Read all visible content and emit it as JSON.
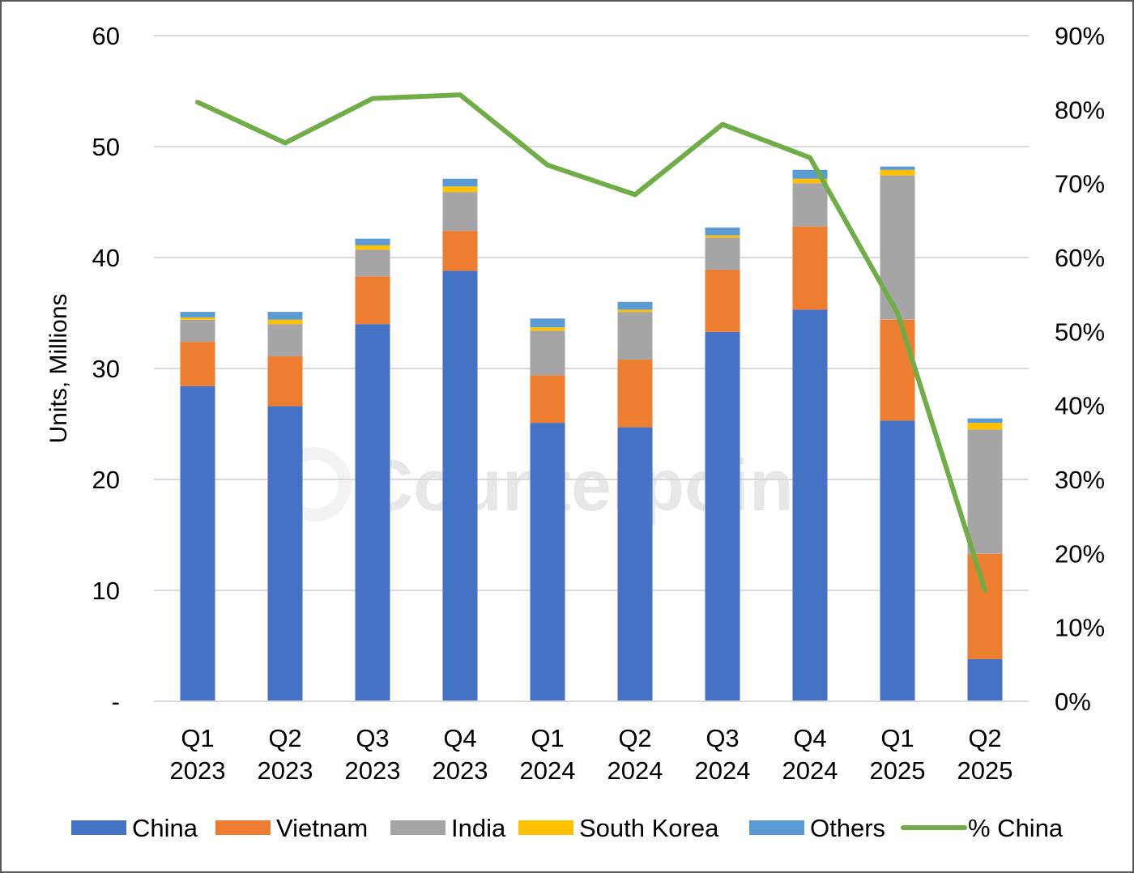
{
  "chart_data": {
    "type": "bar",
    "stacked": true,
    "categories": [
      [
        "Q1",
        "2023"
      ],
      [
        "Q2",
        "2023"
      ],
      [
        "Q3",
        "2023"
      ],
      [
        "Q4",
        "2023"
      ],
      [
        "Q1",
        "2024"
      ],
      [
        "Q2",
        "2024"
      ],
      [
        "Q3",
        "2024"
      ],
      [
        "Q4",
        "2024"
      ],
      [
        "Q1",
        "2025"
      ],
      [
        "Q2",
        "2025"
      ]
    ],
    "ylabel": "Units, Millions",
    "ylim": [
      0,
      60
    ],
    "y_ticks": [
      "-",
      "10",
      "20",
      "30",
      "40",
      "50",
      "60"
    ],
    "y2lim": [
      0,
      90
    ],
    "y2_ticks": [
      "0%",
      "10%",
      "20%",
      "30%",
      "40%",
      "50%",
      "60%",
      "70%",
      "80%",
      "90%"
    ],
    "grid": true,
    "legend_position": "bottom",
    "series": [
      {
        "name": "China",
        "color": "#4472C4",
        "values": [
          28.4,
          26.6,
          34.0,
          38.8,
          25.1,
          24.7,
          33.3,
          35.3,
          25.3,
          3.8
        ]
      },
      {
        "name": "Vietnam",
        "color": "#ED7D31",
        "values": [
          4.0,
          4.5,
          4.3,
          3.6,
          4.3,
          6.1,
          5.6,
          7.5,
          9.1,
          9.5
        ]
      },
      {
        "name": "India",
        "color": "#A5A5A5",
        "values": [
          2.0,
          2.9,
          2.4,
          3.5,
          4.0,
          4.3,
          2.9,
          3.9,
          13.0,
          11.2
        ]
      },
      {
        "name": "South Korea",
        "color": "#FFC000",
        "values": [
          0.2,
          0.4,
          0.4,
          0.5,
          0.3,
          0.2,
          0.2,
          0.4,
          0.5,
          0.6
        ]
      },
      {
        "name": "Others",
        "color": "#5B9BD5",
        "values": [
          0.5,
          0.7,
          0.6,
          0.7,
          0.8,
          0.7,
          0.7,
          0.8,
          0.3,
          0.4
        ]
      }
    ],
    "line_series": {
      "name": "% China",
      "color": "#70AD47",
      "axis": "right",
      "values": [
        81,
        75.5,
        81.5,
        82,
        72.5,
        68.5,
        78,
        73.5,
        52.5,
        15
      ]
    },
    "watermark": "Counterpoint"
  }
}
